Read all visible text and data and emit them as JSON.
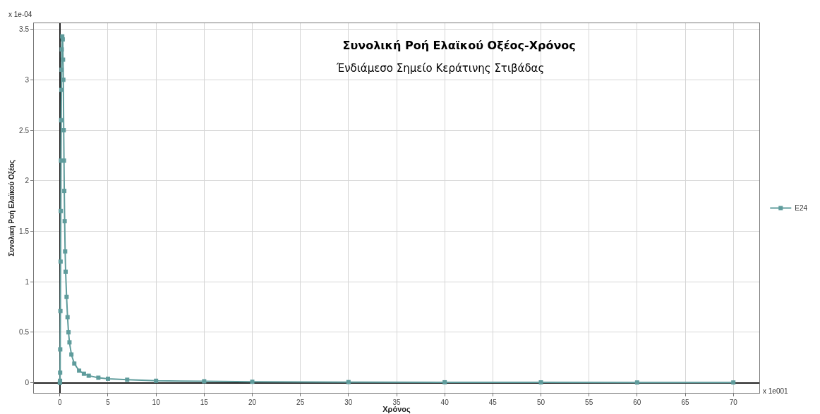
{
  "chart_data": {
    "type": "line",
    "title": "Συνολική Ροή Ελαϊκού Οξέος-Χρόνος",
    "subtitle": "Ένδιάμεσο Σημείο Κεράτινης Στιβάδας",
    "xlabel": "Χρόνος",
    "ylabel": "Συνολική Ροή Ελαϊκού Οξέος",
    "annotations": [
      "x 1e-04",
      "x 1e001"
    ],
    "x": [
      0,
      0.02,
      0.03,
      0.04,
      0.06,
      0.08,
      0.1,
      0.12,
      0.14,
      0.16,
      0.18,
      0.2,
      0.25,
      0.3,
      0.33,
      0.36,
      0.4,
      0.43,
      0.46,
      0.5,
      0.55,
      0.6,
      0.7,
      0.8,
      0.9,
      1.0,
      1.2,
      1.5,
      2,
      2.5,
      3,
      4,
      5,
      7,
      10,
      15,
      20,
      30,
      40,
      50,
      60,
      70
    ],
    "series": [
      {
        "name": "E24",
        "color": "#5f9c9c",
        "values": [
          0,
          0.02,
          0.1,
          0.33,
          0.71,
          1.2,
          1.7,
          2.2,
          2.6,
          2.9,
          3.1,
          3.3,
          3.43,
          3.4,
          3.2,
          3.0,
          2.5,
          2.2,
          1.9,
          1.6,
          1.3,
          1.1,
          0.85,
          0.65,
          0.5,
          0.4,
          0.28,
          0.19,
          0.12,
          0.09,
          0.07,
          0.05,
          0.04,
          0.03,
          0.02,
          0.015,
          0.01,
          0.007,
          0.005,
          0.004,
          0.003,
          0.003
        ]
      }
    ],
    "xlim": [
      -2.7,
      72.7
    ],
    "xticks": [
      0,
      5,
      10,
      15,
      20,
      25,
      30,
      35,
      40,
      45,
      50,
      55,
      60,
      65,
      70
    ],
    "ylim": [
      -0.1,
      3.56
    ],
    "yticks": [
      0,
      0.5,
      1,
      1.5,
      2,
      2.5,
      3,
      3.5
    ],
    "grid": true,
    "legend": "right",
    "marker": "square",
    "line_style": "solid"
  }
}
